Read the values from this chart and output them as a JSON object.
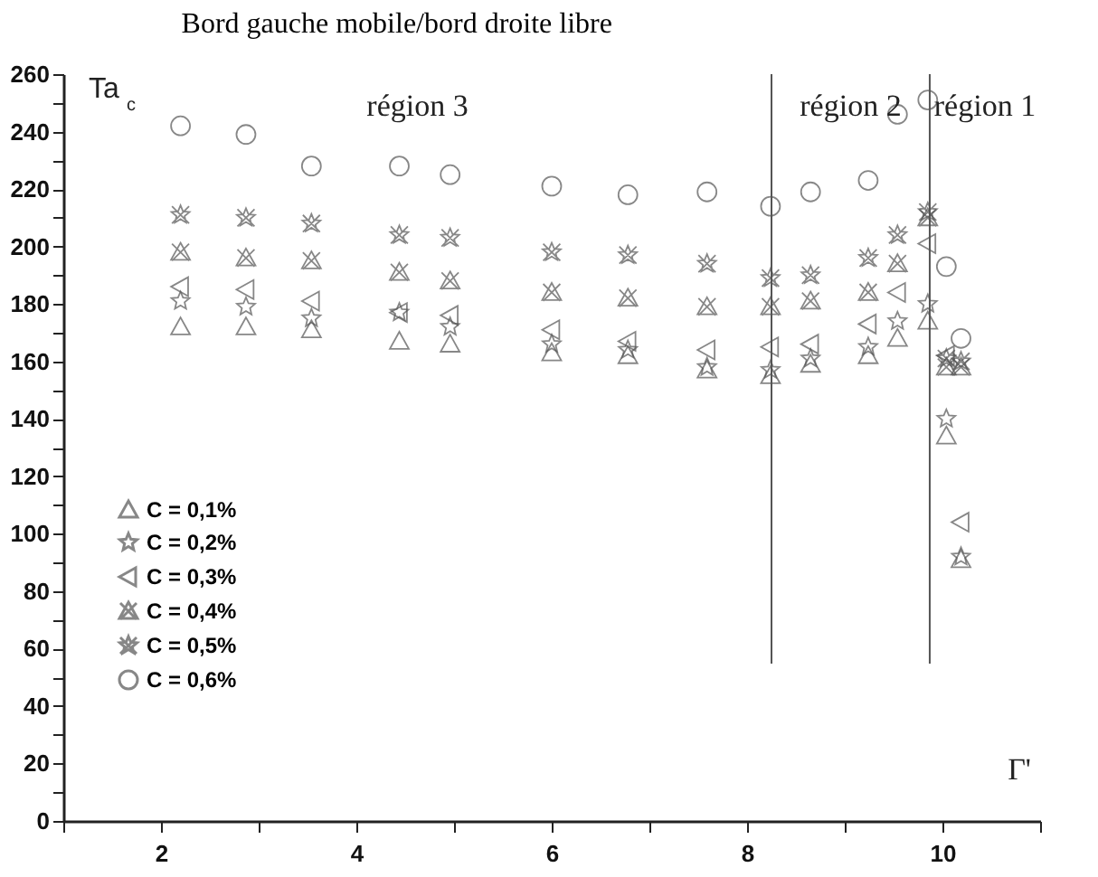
{
  "chart_data": {
    "type": "scatter",
    "title": "Bord gauche mobile/bord droite libre",
    "xlabel": "Γ'",
    "ylabel": "Ta$_{c}$",
    "x": [
      2.2,
      2.87,
      3.54,
      4.44,
      4.96,
      6.0,
      6.78,
      7.59,
      8.24,
      8.65,
      9.24,
      9.54,
      9.85,
      10.04,
      10.19
    ],
    "series": [
      {
        "name": "C = 0,1%",
        "color": "#555555",
        "marker": "triangle",
        "values": [
          172,
          172,
          171,
          167,
          166,
          163,
          162,
          157,
          155,
          159,
          162,
          168,
          174,
          134,
          91
        ]
      },
      {
        "name": "C = 0,2%",
        "color": "#555555",
        "marker": "star",
        "values": [
          181,
          179,
          175,
          177,
          172,
          166,
          164,
          158,
          157,
          161,
          165,
          174,
          180,
          140,
          92
        ]
      },
      {
        "name": "C = 0,3%",
        "color": "#555555",
        "marker": "triangle-left",
        "values": [
          186,
          185,
          181,
          177,
          176,
          171,
          167,
          164,
          165,
          166,
          173,
          184,
          201,
          162,
          104
        ]
      },
      {
        "name": "C = 0,4%",
        "color": "#555555",
        "marker": "cross",
        "values": [
          198,
          196,
          195,
          191,
          188,
          184,
          182,
          179,
          179,
          181,
          184,
          194,
          210,
          158,
          158
        ]
      },
      {
        "name": "C = 0,5%",
        "color": "#555555",
        "marker": "cross",
        "values": [
          211,
          210,
          208,
          204,
          203,
          198,
          197,
          194,
          189,
          190,
          196,
          204,
          212,
          161,
          160
        ]
      },
      {
        "name": "C = 0,6%",
        "color": "#555555",
        "marker": "circle",
        "values": [
          242,
          239,
          228,
          228,
          225,
          221,
          218,
          219,
          214,
          219,
          223,
          246,
          251,
          193,
          168
        ]
      }
    ],
    "xlim": [
      1,
      11
    ],
    "xticks": [
      {
        "value": 1,
        "label": null
      },
      2,
      {
        "value": 3,
        "label": null
      },
      4,
      {
        "value": 5,
        "label": null
      },
      6,
      {
        "value": 7,
        "label": null
      },
      8,
      {
        "value": 9,
        "label": null
      },
      10,
      {
        "value": 11,
        "label": null
      }
    ],
    "ylim": [
      0,
      260
    ],
    "yticks": [
      0,
      {
        "value": 10,
        "label": null
      },
      20,
      {
        "value": 30,
        "label": null
      },
      40,
      {
        "value": 50,
        "label": null
      },
      60,
      {
        "value": 70,
        "label": null
      },
      80,
      {
        "value": 90,
        "label": null
      },
      100,
      {
        "value": 110,
        "label": null
      },
      120,
      {
        "value": 130,
        "label": null
      },
      140,
      {
        "value": 150,
        "label": null
      },
      160,
      {
        "value": 170,
        "label": null
      },
      180,
      {
        "value": 190,
        "label": null
      },
      200,
      {
        "value": 210,
        "label": null
      },
      220,
      {
        "value": 230,
        "label": null
      },
      240,
      {
        "value": 250,
        "label": null
      },
      260
    ],
    "ref_lines": [
      {
        "axis": "x",
        "value": 8.25,
        "color": "#555555",
        "line_style": "solid"
      },
      {
        "axis": "x",
        "value": 9.87,
        "color": "#555555",
        "line_style": "solid"
      }
    ],
    "annotations": [
      "région 3",
      "région 2",
      "région 1"
    ],
    "legend": "left",
    "grid": false
  }
}
